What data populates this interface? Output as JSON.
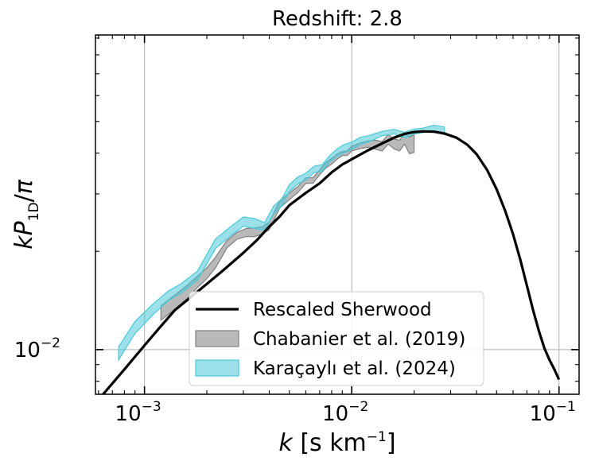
{
  "chart_data": {
    "type": "line",
    "title": "Redshift: 2.8",
    "xlabel": "k [s km⁻¹]",
    "ylabel": "kP₁D/π",
    "xscale": "log",
    "yscale": "log",
    "xlim": [
      0.00058,
      0.125
    ],
    "ylim": [
      0.0073,
      0.092
    ],
    "xticks": [
      {
        "value": 0.001,
        "base": "10",
        "exp": "−3"
      },
      {
        "value": 0.01,
        "base": "10",
        "exp": "−2"
      },
      {
        "value": 0.1,
        "base": "10",
        "exp": "−1"
      }
    ],
    "yticks": [
      {
        "value": 0.01,
        "base": "10",
        "exp": "−2"
      }
    ],
    "grid": true,
    "legend_position": "bottom-center",
    "series": [
      {
        "name": "Rescaled Sherwood",
        "kind": "line",
        "color": "#000000",
        "x": [
          0.00062,
          0.0008,
          0.001,
          0.0012,
          0.0014,
          0.0017,
          0.002,
          0.0024,
          0.003,
          0.0035,
          0.004,
          0.0045,
          0.005,
          0.006,
          0.007,
          0.008,
          0.009,
          0.01,
          0.012,
          0.014,
          0.016,
          0.018,
          0.02,
          0.022,
          0.025,
          0.028,
          0.032,
          0.036,
          0.04,
          0.045,
          0.05,
          0.055,
          0.06,
          0.065,
          0.07,
          0.075,
          0.08,
          0.085,
          0.09,
          0.095,
          0.1
        ],
        "y": [
          0.0072,
          0.0087,
          0.0103,
          0.0118,
          0.0132,
          0.0146,
          0.0159,
          0.0175,
          0.0198,
          0.0217,
          0.0238,
          0.0256,
          0.0277,
          0.0302,
          0.0323,
          0.0349,
          0.0369,
          0.0383,
          0.0408,
          0.0428,
          0.0446,
          0.0458,
          0.0464,
          0.0466,
          0.0465,
          0.0459,
          0.0446,
          0.0425,
          0.0397,
          0.0355,
          0.031,
          0.0266,
          0.0226,
          0.0189,
          0.0157,
          0.0132,
          0.0114,
          0.0101,
          0.0093,
          0.0087,
          0.0081
        ]
      },
      {
        "name": "Chabanier et al. (2019)",
        "kind": "band",
        "color": "#808080",
        "x": [
          0.0012,
          0.0014,
          0.0016,
          0.0018,
          0.002,
          0.0022,
          0.0025,
          0.0028,
          0.0031,
          0.0034,
          0.0037,
          0.004,
          0.0045,
          0.005,
          0.0055,
          0.006,
          0.0065,
          0.007,
          0.0075,
          0.008,
          0.0085,
          0.009,
          0.0095,
          0.01,
          0.011,
          0.012,
          0.013,
          0.014,
          0.015,
          0.016,
          0.017,
          0.018,
          0.019,
          0.02
        ],
        "low": [
          0.0123,
          0.0133,
          0.0143,
          0.0155,
          0.0165,
          0.0178,
          0.0205,
          0.0218,
          0.0222,
          0.0222,
          0.0226,
          0.0233,
          0.0272,
          0.0288,
          0.0303,
          0.0323,
          0.0323,
          0.0343,
          0.036,
          0.037,
          0.0383,
          0.0393,
          0.0393,
          0.0406,
          0.0413,
          0.0417,
          0.0411,
          0.0406,
          0.0426,
          0.0412,
          0.0406,
          0.0426,
          0.0398,
          0.0402
        ],
        "high": [
          0.0136,
          0.0147,
          0.0157,
          0.0168,
          0.0178,
          0.0192,
          0.0216,
          0.0229,
          0.0235,
          0.0236,
          0.0238,
          0.0246,
          0.0286,
          0.0302,
          0.0316,
          0.0336,
          0.0336,
          0.0355,
          0.0374,
          0.0385,
          0.0398,
          0.0404,
          0.0406,
          0.042,
          0.043,
          0.0436,
          0.0438,
          0.0434,
          0.0456,
          0.0442,
          0.0438,
          0.0461,
          0.0448,
          0.0455
        ]
      },
      {
        "name": "Karaçaylı et al. (2024)",
        "kind": "band",
        "color": "#4bc8d8",
        "x": [
          0.00075,
          0.0009,
          0.0011,
          0.0013,
          0.0015,
          0.0018,
          0.0022,
          0.0026,
          0.003,
          0.0034,
          0.0038,
          0.0042,
          0.0046,
          0.005,
          0.0055,
          0.006,
          0.0066,
          0.0072,
          0.0078,
          0.0085,
          0.0092,
          0.01,
          0.011,
          0.012,
          0.013,
          0.014,
          0.016,
          0.018,
          0.02,
          0.022,
          0.025,
          0.028
        ],
        "low": [
          0.0093,
          0.0112,
          0.0128,
          0.0141,
          0.0149,
          0.0163,
          0.0204,
          0.0223,
          0.0239,
          0.0235,
          0.0232,
          0.026,
          0.0275,
          0.0305,
          0.0322,
          0.0331,
          0.0349,
          0.0352,
          0.0375,
          0.0391,
          0.0401,
          0.041,
          0.0425,
          0.0432,
          0.0442,
          0.0452,
          0.0458,
          0.0445,
          0.0458,
          0.0462,
          0.0468,
          0.0458
        ],
        "high": [
          0.0102,
          0.0122,
          0.0138,
          0.0151,
          0.0159,
          0.0174,
          0.0218,
          0.0238,
          0.0255,
          0.0252,
          0.0245,
          0.0275,
          0.029,
          0.032,
          0.0338,
          0.0347,
          0.0365,
          0.0368,
          0.0392,
          0.0412,
          0.0425,
          0.0432,
          0.0447,
          0.0452,
          0.0459,
          0.0466,
          0.0473,
          0.0463,
          0.0474,
          0.0477,
          0.0487,
          0.0481
        ]
      }
    ]
  }
}
